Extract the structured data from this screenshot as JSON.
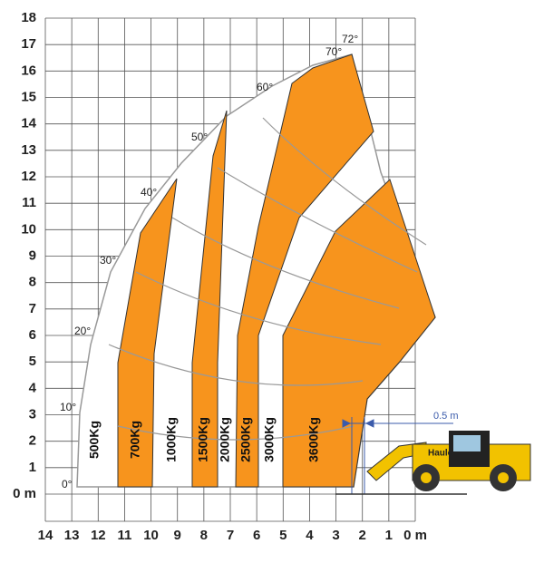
{
  "y_axis": {
    "labels": [
      "0 m",
      "1",
      "2",
      "3",
      "4",
      "5",
      "6",
      "7",
      "8",
      "9",
      "10",
      "11",
      "12",
      "13",
      "14",
      "15",
      "16",
      "17",
      "18"
    ]
  },
  "x_axis": {
    "labels": [
      "14",
      "13",
      "12",
      "11",
      "10",
      "9",
      "8",
      "7",
      "6",
      "5",
      "4",
      "3",
      "2",
      "1",
      "0 m"
    ]
  },
  "angles": [
    "0°",
    "10°",
    "20°",
    "30°",
    "40°",
    "50°",
    "60°",
    "70°",
    "72°"
  ],
  "zones": [
    "500Kg",
    "700Kg",
    "1000Kg",
    "1500Kg",
    "2000Kg",
    "2500Kg",
    "3000Kg",
    "3600Kg"
  ],
  "dimension": "0.5 m",
  "machine_brand": "Haulo"
}
